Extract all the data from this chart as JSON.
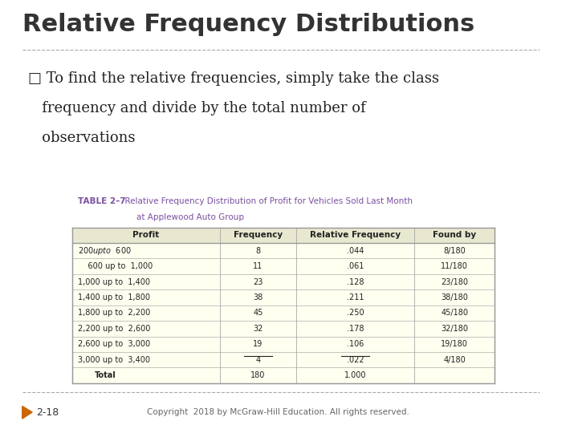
{
  "title": "Relative Frequency Distributions",
  "bullet_text_lines": [
    "□ To find the relative frequencies, simply take the class",
    "   frequency and divide by the total number of",
    "   observations"
  ],
  "table_title_bold": "TABLE 2–7",
  "table_title_normal": "  Relative Frequency Distribution of Profit for Vehicles Sold Last Month",
  "table_title_line2": "at Applewood Auto Group",
  "table_headers": [
    "Profit",
    "Frequency",
    "Relative Frequency",
    "Found by"
  ],
  "table_rows": [
    [
      "$ 200 up to $  600",
      "8",
      ".044",
      "8/180"
    ],
    [
      "    600 up to  1,000",
      "11",
      ".061",
      "11/180"
    ],
    [
      "1,000 up to  1,400",
      "23",
      ".128",
      "23/180"
    ],
    [
      "1,400 up to  1,800",
      "38",
      ".211",
      "38/180"
    ],
    [
      "1,800 up to  2,200",
      "45",
      ".250",
      "45/180"
    ],
    [
      "2,200 up to  2,600",
      "32",
      ".178",
      "32/180"
    ],
    [
      "2,600 up to  3,000",
      "19",
      ".106",
      "19/180"
    ],
    [
      "3,000 up to  3,400",
      "4",
      ".022",
      "4/180"
    ]
  ],
  "table_total_row": [
    "Total",
    "180",
    "1.000",
    ""
  ],
  "footer_left": "2-18",
  "footer_center": "Copyright  2018 by McGraw-Hill Education. All rights reserved.",
  "bg_color": "#ffffff",
  "table_bg_color": "#fffff0",
  "table_header_bg": "#e8e8d0",
  "title_color": "#333333",
  "bullet_color": "#222222",
  "table_title_color": "#7B4FA0",
  "table_border_color": "#999999",
  "footer_color": "#666666",
  "separator_color": "#aaaaaa",
  "arrow_color": "#cc6600"
}
